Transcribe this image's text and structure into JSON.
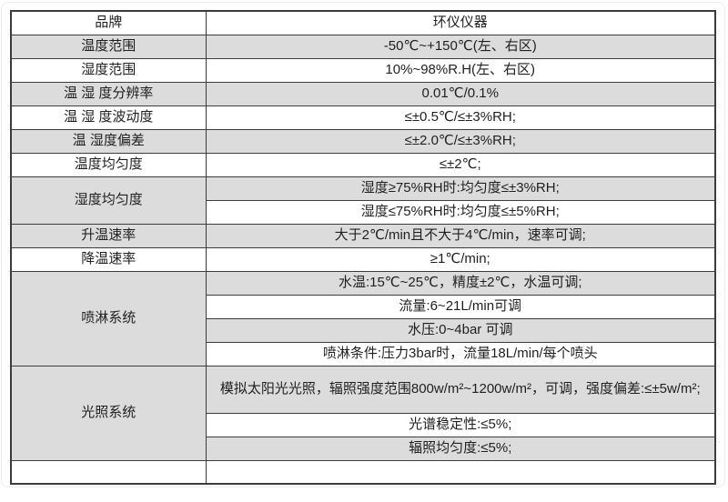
{
  "colors": {
    "row_shade": "#dcdcdc",
    "row_white": "#ffffff",
    "table_border": "#3c3c3c",
    "text": "#1f1f1f",
    "page_frame": "#ececec"
  },
  "table": {
    "rows": [
      {
        "label": "品牌",
        "label_shaded": false,
        "cells": [
          {
            "text": "环仪仪器",
            "shaded": false
          }
        ]
      },
      {
        "label": "温度范围",
        "label_shaded": true,
        "cells": [
          {
            "text": "-50℃~+150℃(左、右区)",
            "shaded": true
          }
        ]
      },
      {
        "label": "湿度范围",
        "label_shaded": false,
        "cells": [
          {
            "text": "10%~98%R.H(左、右区)",
            "shaded": false
          }
        ]
      },
      {
        "label": "温 湿 度分辨率",
        "label_shaded": true,
        "cells": [
          {
            "text": "0.01℃/0.1%",
            "shaded": true
          }
        ]
      },
      {
        "label": "温 湿 度波动度",
        "label_shaded": false,
        "cells": [
          {
            "text": "≤±0.5℃/≤±3%RH;",
            "shaded": false
          }
        ]
      },
      {
        "label": "温 湿度偏差",
        "label_shaded": true,
        "cells": [
          {
            "text": "≤±2.0℃/≤±3%RH;",
            "shaded": true
          }
        ]
      },
      {
        "label": "温度均匀度",
        "label_shaded": false,
        "cells": [
          {
            "text": "≤±2℃;",
            "shaded": false
          }
        ]
      },
      {
        "label": "湿度均匀度",
        "label_shaded": true,
        "cells": [
          {
            "text": "湿度≥75%RH时:均匀度≤±3%RH;",
            "shaded": true
          },
          {
            "text": "湿度≤75%RH时:均匀度≤±5%RH;",
            "shaded": false
          }
        ]
      },
      {
        "label": "升温速率",
        "label_shaded": true,
        "cells": [
          {
            "text": "大于2℃/min且不大于4℃/min，速率可调;",
            "shaded": true
          }
        ]
      },
      {
        "label": "降温速率",
        "label_shaded": false,
        "cells": [
          {
            "text": "≥1℃/min;",
            "shaded": false
          }
        ]
      },
      {
        "label": "喷淋系统",
        "label_shaded": true,
        "cells": [
          {
            "text": "水温:15℃~25℃，精度±2℃，水温可调;",
            "shaded": true
          },
          {
            "text": "流量:6~21L/min可调",
            "shaded": false
          },
          {
            "text": "水压:0~4bar 可调",
            "shaded": true
          },
          {
            "text": "喷淋条件:压力3bar时，流量18L/min/每个喷头",
            "shaded": false
          }
        ]
      },
      {
        "label": "光照系统",
        "label_shaded": true,
        "cells": [
          {
            "text": "模拟太阳光光照，辐照强度范围800w/m²~1200w/m²，可调，强度偏差:≤±5w/m²;",
            "shaded": true,
            "tall": true
          },
          {
            "text": "光谱稳定性:≤5%;",
            "shaded": false
          },
          {
            "text": "辐照均匀度:≤5%;",
            "shaded": true
          }
        ]
      },
      {
        "label": "",
        "label_shaded": false,
        "cells": [
          {
            "text": "",
            "shaded": false,
            "short": true
          }
        ]
      }
    ]
  }
}
